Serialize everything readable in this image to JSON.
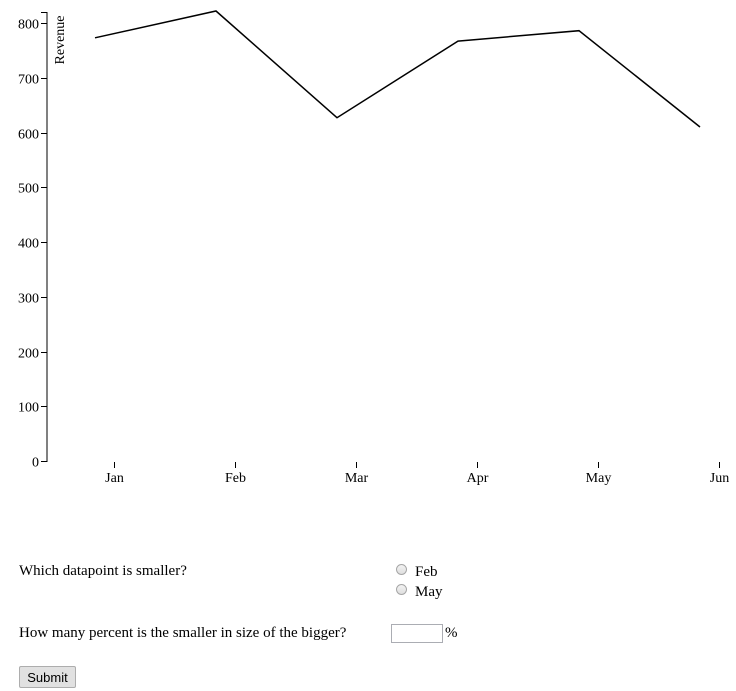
{
  "chart_data": {
    "type": "line",
    "title": "",
    "xlabel": "",
    "ylabel": "Revenue",
    "categories": [
      "Jan",
      "Feb",
      "Mar",
      "Apr",
      "May",
      "Jun"
    ],
    "series": [
      {
        "values": [
          773,
          822,
          627,
          767,
          786,
          610
        ]
      }
    ],
    "ylim": [
      0,
      800
    ],
    "yticks": [
      0,
      100,
      200,
      300,
      400,
      500,
      600,
      700,
      800
    ],
    "grid": false,
    "line_color": "#000000"
  },
  "form": {
    "question1": "Which datapoint is smaller?",
    "options": [
      "Feb",
      "May"
    ],
    "question2": "How many percent is the smaller in size of the bigger?",
    "percent_sign": "%",
    "answer_value": "",
    "submit_label": "Submit"
  }
}
